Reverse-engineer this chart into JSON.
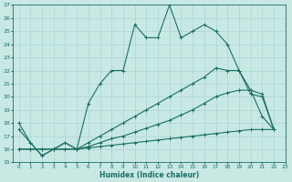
{
  "xlabel": "Humidex (Indice chaleur)",
  "bg_color": "#c8e8e4",
  "grid_color": "#b0d8d4",
  "line_color": "#1a6e64",
  "ylim": [
    15,
    27
  ],
  "xlim": [
    -0.5,
    23
  ],
  "yticks": [
    15,
    16,
    17,
    18,
    19,
    20,
    21,
    22,
    23,
    24,
    25,
    26,
    27
  ],
  "xticks": [
    0,
    1,
    2,
    3,
    4,
    5,
    6,
    7,
    8,
    9,
    10,
    11,
    12,
    13,
    14,
    15,
    16,
    17,
    18,
    19,
    20,
    21,
    22,
    23
  ],
  "series1_x": [
    0,
    1,
    2,
    3,
    4,
    5,
    6,
    7,
    8,
    9,
    10,
    11,
    12,
    13,
    14,
    15,
    16,
    17,
    18,
    19,
    20,
    21,
    22
  ],
  "series1_y": [
    18.0,
    16.5,
    15.5,
    16.0,
    16.5,
    16.0,
    19.5,
    21.0,
    22.0,
    22.0,
    25.5,
    24.5,
    24.5,
    27.0,
    24.5,
    25.0,
    25.5,
    25.0,
    24.0,
    22.0,
    20.2,
    20.0,
    17.5
  ],
  "series2_x": [
    0,
    1,
    2,
    3,
    4,
    5,
    6,
    7,
    8,
    9,
    10,
    11,
    12,
    13,
    14,
    15,
    16,
    17,
    18,
    19,
    20,
    21,
    22
  ],
  "series2_y": [
    16.0,
    16.0,
    16.0,
    16.0,
    16.5,
    16.0,
    16.5,
    17.0,
    17.5,
    18.0,
    18.5,
    19.0,
    19.5,
    20.0,
    20.5,
    21.0,
    21.5,
    22.2,
    22.0,
    22.0,
    20.5,
    20.2,
    17.5
  ],
  "series3_x": [
    0,
    1,
    2,
    3,
    4,
    5,
    6,
    7,
    8,
    9,
    10,
    11,
    12,
    13,
    14,
    15,
    16,
    17,
    18,
    19,
    20,
    21,
    22
  ],
  "series3_y": [
    16.0,
    16.0,
    16.0,
    16.0,
    16.0,
    16.0,
    16.2,
    16.5,
    16.8,
    17.0,
    17.3,
    17.6,
    17.9,
    18.2,
    18.6,
    19.0,
    19.5,
    20.0,
    20.3,
    20.5,
    20.5,
    18.5,
    17.5
  ],
  "series4_x": [
    0,
    1,
    2,
    3,
    4,
    5,
    6,
    7,
    8,
    9,
    10,
    11,
    12,
    13,
    14,
    15,
    16,
    17,
    18,
    19,
    20,
    21,
    22
  ],
  "series4_y": [
    17.5,
    16.5,
    15.5,
    16.0,
    16.0,
    16.0,
    16.1,
    16.2,
    16.3,
    16.4,
    16.5,
    16.6,
    16.7,
    16.8,
    16.9,
    17.0,
    17.1,
    17.2,
    17.3,
    17.4,
    17.5,
    17.5,
    17.5
  ]
}
